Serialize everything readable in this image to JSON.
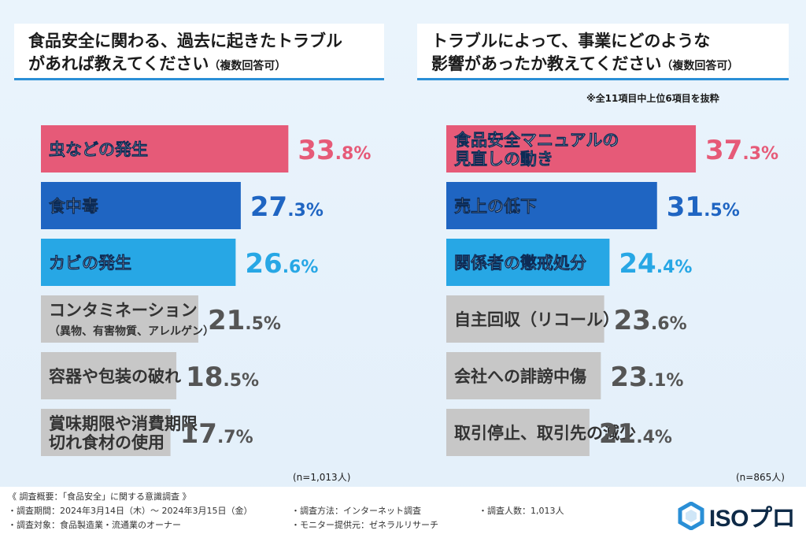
{
  "left": {
    "title_line1": "食品安全に関わる、過去に起きたトラブル",
    "title_line2": "があれば教えてください",
    "title_suffix": "（複数回答可）",
    "sample": "(n=1,013人)"
  },
  "right": {
    "title_line1": "トラブルによって、事業にどのような",
    "title_line2": "影響があったか教えてください",
    "title_suffix": "（複数回答可）",
    "note": "※全11項目中上位6項目を抜粋",
    "sample": "(n=865人)"
  },
  "colors": {
    "first": "#e65a78",
    "second": "#1f65c2",
    "third": "#27a7e5",
    "other": "#c7c7c7"
  },
  "chart_data": [
    {
      "type": "bar",
      "orientation": "horizontal",
      "categories": [
        [
          "虫などの発生"
        ],
        [
          "食中毒"
        ],
        [
          "カビの発生"
        ],
        [
          "コンタミネーション",
          "（異物、有害物質、アレルゲン）"
        ],
        [
          "容器や包装の破れ"
        ],
        [
          "賞味期限や消費期限",
          "切れ食材の使用"
        ]
      ],
      "values": [
        33.8,
        27.3,
        26.6,
        21.5,
        18.5,
        17.7
      ],
      "unit": "%"
    },
    {
      "type": "bar",
      "orientation": "horizontal",
      "categories": [
        [
          "食品安全マニュアルの",
          "見直しの動き"
        ],
        [
          "売上の低下"
        ],
        [
          "関係者の懲戒処分"
        ],
        [
          "自主回収（リコール）"
        ],
        [
          "会社への誹謗中傷"
        ],
        [
          "取引停止、取引先の減少"
        ]
      ],
      "values": [
        37.3,
        31.5,
        24.4,
        23.6,
        23.1,
        21.4
      ],
      "unit": "%"
    }
  ],
  "footer": {
    "line1": "《 調査概要：「食品安全」に関する意識調査 》",
    "period": "・調査期間：2024年3月14日（木）～ 2024年3月15日（金）",
    "method": "・調査方法：インターネット調査",
    "count": "・調査人数：1,013人",
    "target": "・調査対象：食品製造業・流通業のオーナー",
    "provider": "・モニター提供元：ゼネラルリサーチ"
  },
  "logo": {
    "text": "ISOプロ"
  }
}
